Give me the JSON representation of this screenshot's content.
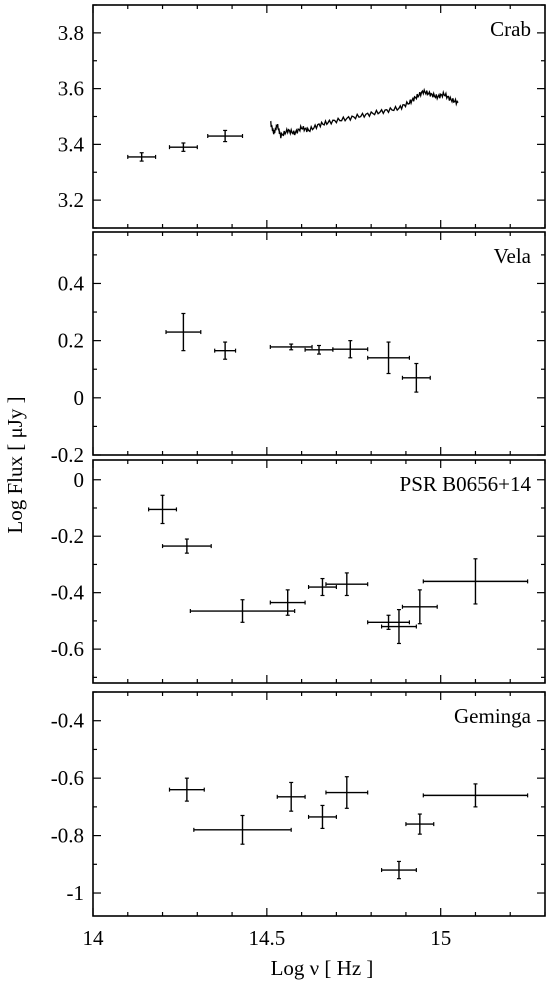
{
  "chart_data": {
    "type": "scatter",
    "xlabel": "Log ν  [ Hz ]",
    "ylabel": "Log Flux  [ μJy ]",
    "xlim": [
      14.0,
      15.3
    ],
    "x_ticks": [
      "14",
      "14.5",
      "15"
    ],
    "panels": [
      {
        "name": "Crab",
        "ylim": [
          3.1,
          3.9
        ],
        "y_ticks": [
          "3.2",
          "3.4",
          "3.6",
          "3.8"
        ],
        "points": [
          {
            "x": 14.14,
            "y": 3.355,
            "xerr": 0.04,
            "yerr": 0.015
          },
          {
            "x": 14.26,
            "y": 3.39,
            "xerr": 0.04,
            "yerr": 0.015
          },
          {
            "x": 14.38,
            "y": 3.43,
            "xerr": 0.05,
            "yerr": 0.02
          }
        ],
        "spectrum": {
          "x": [
            14.51,
            14.52,
            14.53,
            14.54,
            14.56,
            14.58,
            14.6,
            14.62,
            14.65,
            14.68,
            14.72,
            14.76,
            14.8,
            14.84,
            14.88,
            14.91,
            14.93,
            14.95,
            14.97,
            14.99,
            15.01,
            15.03,
            15.05
          ],
          "y": [
            3.48,
            3.44,
            3.47,
            3.43,
            3.45,
            3.44,
            3.46,
            3.45,
            3.47,
            3.48,
            3.49,
            3.5,
            3.51,
            3.52,
            3.53,
            3.55,
            3.57,
            3.59,
            3.58,
            3.57,
            3.58,
            3.56,
            3.55
          ]
        }
      },
      {
        "name": "Vela",
        "ylim": [
          -0.2,
          0.58
        ],
        "y_ticks": [
          "-0.2",
          "0",
          "0.2",
          "0.4"
        ],
        "points": [
          {
            "x": 14.26,
            "y": 0.23,
            "xerr": 0.05,
            "yerr": 0.065
          },
          {
            "x": 14.38,
            "y": 0.165,
            "xerr": 0.03,
            "yerr": 0.03
          },
          {
            "x": 14.57,
            "y": 0.178,
            "xerr": 0.06,
            "yerr": 0.01
          },
          {
            "x": 14.65,
            "y": 0.168,
            "xerr": 0.04,
            "yerr": 0.015
          },
          {
            "x": 14.74,
            "y": 0.17,
            "xerr": 0.05,
            "yerr": 0.03
          },
          {
            "x": 14.85,
            "y": 0.14,
            "xerr": 0.06,
            "yerr": 0.055
          },
          {
            "x": 14.93,
            "y": 0.07,
            "xerr": 0.04,
            "yerr": 0.05
          }
        ]
      },
      {
        "name": "PSR B0656+14",
        "ylim": [
          -0.72,
          0.07
        ],
        "y_ticks": [
          "-0.6",
          "-0.4",
          "-0.2",
          "0"
        ],
        "points": [
          {
            "x": 14.2,
            "y": -0.105,
            "xerr": 0.04,
            "yerr": 0.05
          },
          {
            "x": 14.27,
            "y": -0.235,
            "xerr": 0.07,
            "yerr": 0.025
          },
          {
            "x": 14.43,
            "y": -0.465,
            "xerr": 0.15,
            "yerr": 0.04
          },
          {
            "x": 14.56,
            "y": -0.435,
            "xerr": 0.05,
            "yerr": 0.045
          },
          {
            "x": 14.66,
            "y": -0.38,
            "xerr": 0.04,
            "yerr": 0.03
          },
          {
            "x": 14.73,
            "y": -0.37,
            "xerr": 0.06,
            "yerr": 0.04
          },
          {
            "x": 14.85,
            "y": -0.505,
            "xerr": 0.06,
            "yerr": 0.025
          },
          {
            "x": 14.88,
            "y": -0.52,
            "xerr": 0.05,
            "yerr": 0.06
          },
          {
            "x": 14.94,
            "y": -0.45,
            "xerr": 0.05,
            "yerr": 0.06
          },
          {
            "x": 15.1,
            "y": -0.36,
            "xerr": 0.15,
            "yerr": 0.08
          }
        ]
      },
      {
        "name": "Geminga",
        "ylim": [
          -1.08,
          -0.3
        ],
        "y_ticks": [
          "-1",
          "-0.8",
          "-0.6",
          "-0.4"
        ],
        "points": [
          {
            "x": 14.27,
            "y": -0.64,
            "xerr": 0.05,
            "yerr": 0.04
          },
          {
            "x": 14.43,
            "y": -0.78,
            "xerr": 0.14,
            "yerr": 0.05
          },
          {
            "x": 14.57,
            "y": -0.665,
            "xerr": 0.04,
            "yerr": 0.05
          },
          {
            "x": 14.66,
            "y": -0.735,
            "xerr": 0.04,
            "yerr": 0.04
          },
          {
            "x": 14.73,
            "y": -0.65,
            "xerr": 0.06,
            "yerr": 0.055
          },
          {
            "x": 14.88,
            "y": -0.92,
            "xerr": 0.05,
            "yerr": 0.03
          },
          {
            "x": 14.94,
            "y": -0.76,
            "xerr": 0.04,
            "yerr": 0.035
          },
          {
            "x": 15.1,
            "y": -0.66,
            "xerr": 0.15,
            "yerr": 0.04
          }
        ]
      }
    ]
  }
}
